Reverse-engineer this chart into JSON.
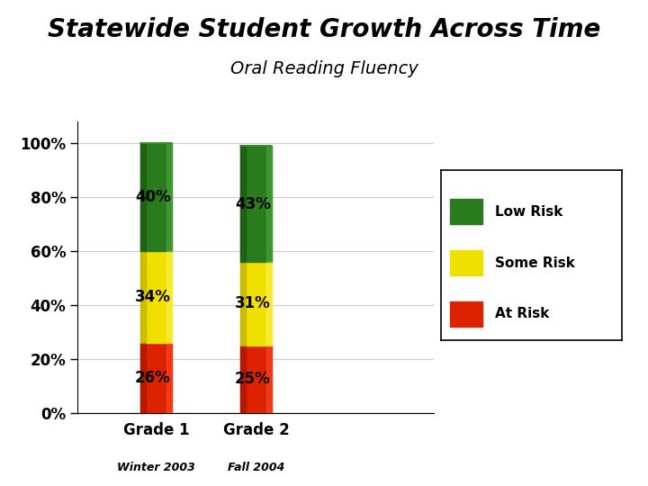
{
  "title": "Statewide Student Growth Across Time",
  "subtitle": "Oral Reading Fluency",
  "categories": [
    "Grade 1",
    "Grade 2"
  ],
  "sublabels": [
    "Winter 2003",
    "Fall 2004"
  ],
  "at_risk": [
    26,
    25
  ],
  "some_risk": [
    34,
    31
  ],
  "low_risk": [
    40,
    43
  ],
  "at_risk_labels": [
    "26%",
    "25%"
  ],
  "some_risk_labels": [
    "34%",
    "31%"
  ],
  "low_risk_labels": [
    "40%",
    "43%"
  ],
  "colors": {
    "low_risk": "#2a7a1e",
    "low_risk_dark": "#1a5a10",
    "low_risk_light": "#50b040",
    "some_risk": "#f0e000",
    "some_risk_dark": "#c0b000",
    "some_risk_light": "#fff060",
    "at_risk": "#dd2200",
    "at_risk_dark": "#aa1500",
    "at_risk_light": "#ff5030"
  },
  "legend_labels": [
    "Low Risk",
    "Some Risk",
    "At Risk"
  ],
  "ylim": [
    0,
    110
  ],
  "yticks": [
    0,
    20,
    40,
    60,
    80,
    100
  ],
  "ytick_labels": [
    "0%",
    "20%",
    "40%",
    "60%",
    "80%",
    "100%"
  ],
  "bar_width": 0.09,
  "background_color": "#ffffff",
  "title_fontsize": 20,
  "subtitle_fontsize": 14,
  "label_fontsize": 12,
  "tick_fontsize": 12
}
